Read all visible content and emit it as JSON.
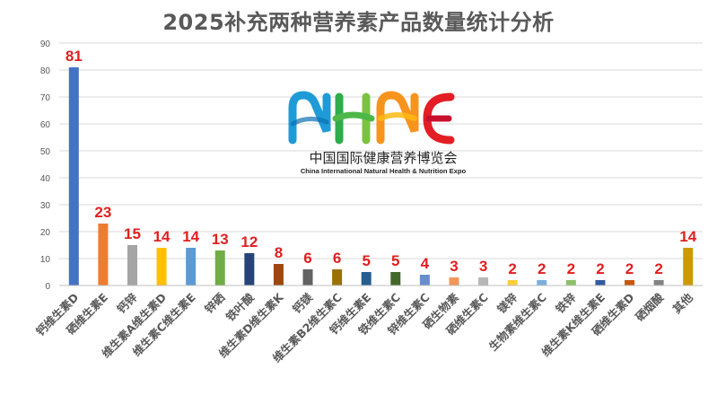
{
  "chart_data": {
    "type": "bar",
    "title": "2025补充两种营养素产品数量统计分析",
    "categories": [
      "钙维生素D",
      "硒维生素E",
      "钙锌",
      "维生素A维生素D",
      "维生素C维生素E",
      "锌硒",
      "铁叶酸",
      "维生素D维生素K",
      "钙镁",
      "维生素B2维生素C",
      "钙维生素E",
      "铁维生素C",
      "锌维生素C",
      "硒生物素",
      "硒维生素C",
      "镁锌",
      "生物素维生素C",
      "铁锌",
      "维生素K维生素E",
      "硒维生素D",
      "硒烟酸",
      "其他"
    ],
    "values": [
      81,
      23,
      15,
      14,
      14,
      13,
      12,
      8,
      6,
      6,
      5,
      5,
      4,
      3,
      3,
      2,
      2,
      2,
      2,
      2,
      2,
      14
    ],
    "colors": [
      "#4472C4",
      "#ED7D31",
      "#A5A5A5",
      "#FFC000",
      "#5B9BD5",
      "#70AD47",
      "#264478",
      "#9E480E",
      "#636363",
      "#997300",
      "#255E91",
      "#43682B",
      "#698ED0",
      "#F1975A",
      "#B7B7B7",
      "#FFCD33",
      "#7CAFDD",
      "#8CC168",
      "#335AA1",
      "#C65911",
      "#838383",
      "#CC9A00"
    ],
    "ylim": [
      0,
      90
    ],
    "yticks": [
      0,
      10,
      20,
      30,
      40,
      50,
      60,
      70,
      80,
      90
    ],
    "label_color": "#E02020",
    "grid": true,
    "xlabel": "",
    "ylabel": ""
  },
  "logo": {
    "letters": [
      "N",
      "H",
      "N",
      "E"
    ],
    "cn_text": "中国国际健康营养博览会",
    "en_text": "China International Natural Health & Nutrition Expo"
  }
}
